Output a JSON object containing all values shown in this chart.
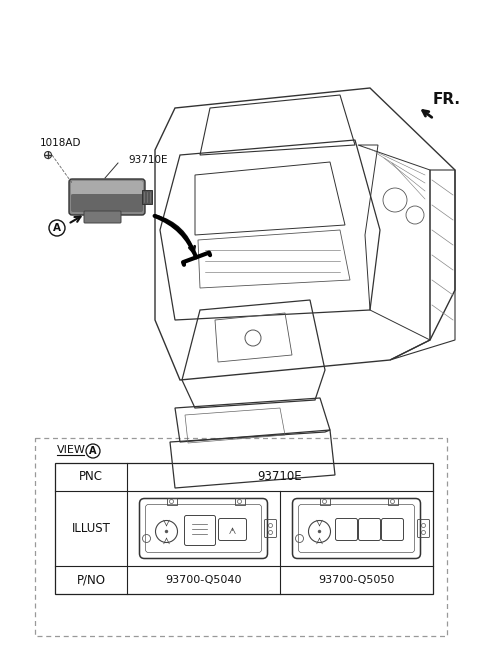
{
  "bg_color": "#ffffff",
  "fr_label": "FR.",
  "label_1018AD": "1018AD",
  "label_93710E": "93710E",
  "label_A": "A",
  "view_label": "VIEW",
  "view_circle_label": "A",
  "pnc_label": "PNC",
  "pnc_value": "93710E",
  "illust_label": "ILLUST",
  "pno_label": "P/NO",
  "pno_1": "93700-Q5040",
  "pno_2": "93700-Q5050",
  "line_color": "#333333",
  "dash_color": "#999999",
  "table_color": "#222222",
  "gray_fill": "#888888",
  "dark_gray": "#555555"
}
